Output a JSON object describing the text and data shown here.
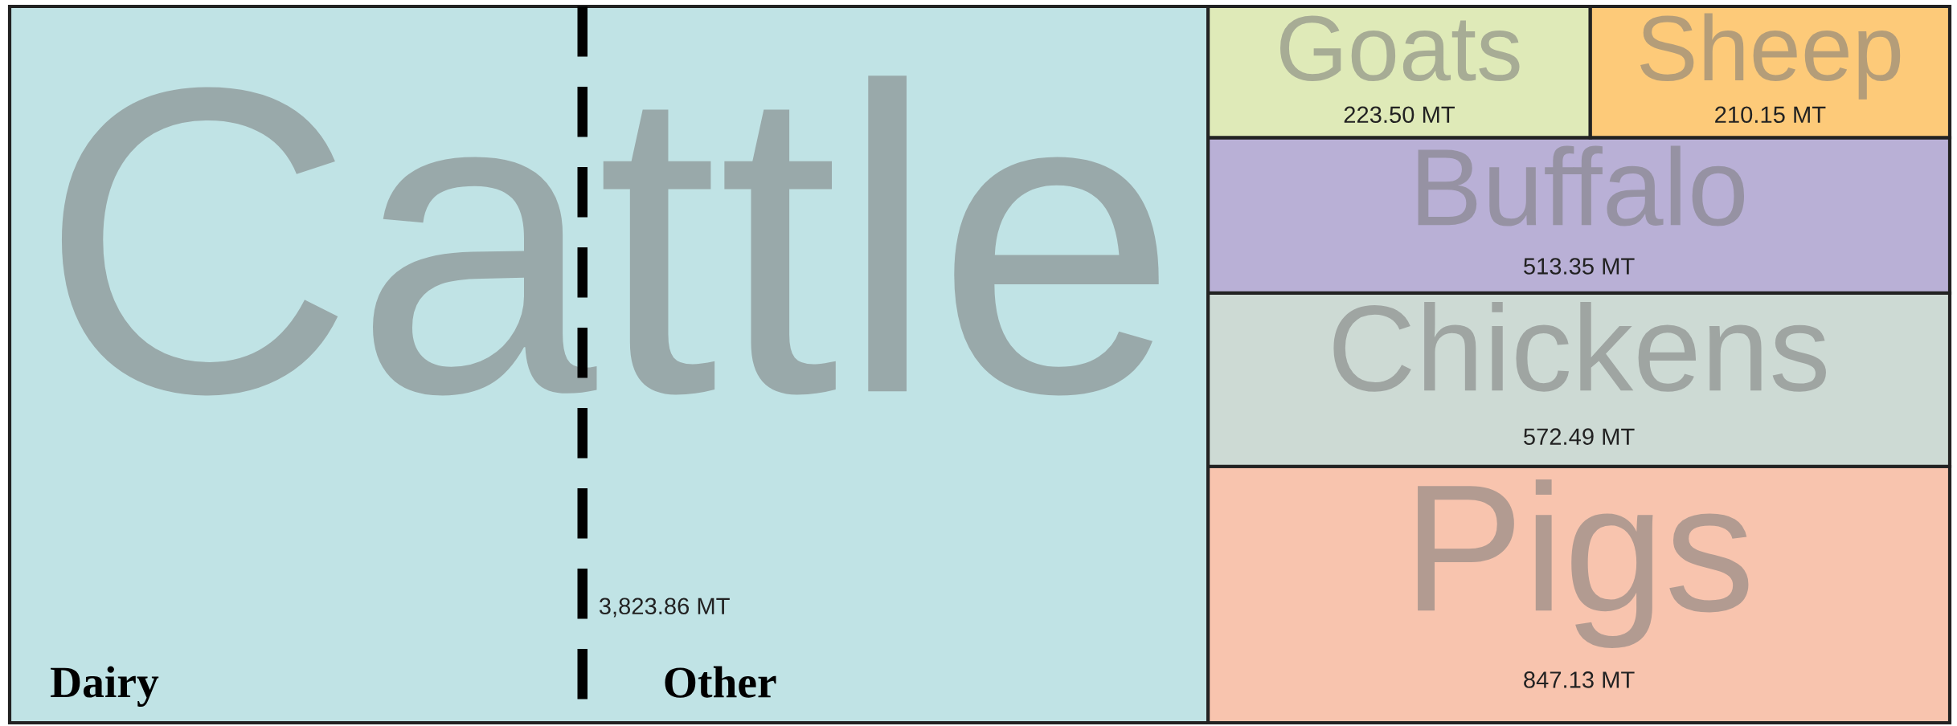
{
  "chart_data": {
    "type": "other",
    "categories": [
      "Cattle",
      "Pigs",
      "Chickens",
      "Buffalo",
      "Goats",
      "Sheep"
    ],
    "values": [
      3823.86,
      847.13,
      572.49,
      513.35,
      223.5,
      210.15
    ],
    "colors": [
      "#c0e3e5",
      "#f8c4ae",
      "#cddad4",
      "#b9b0d6",
      "#dfeab8",
      "#fdca79"
    ],
    "value_labels": [
      "3,823.86 MT",
      "847.13 MT",
      "572.49 MT",
      "513.35 MT",
      "223.50 MT",
      "210.15 MT"
    ],
    "annotations": [
      "Dairy",
      "Other"
    ]
  }
}
